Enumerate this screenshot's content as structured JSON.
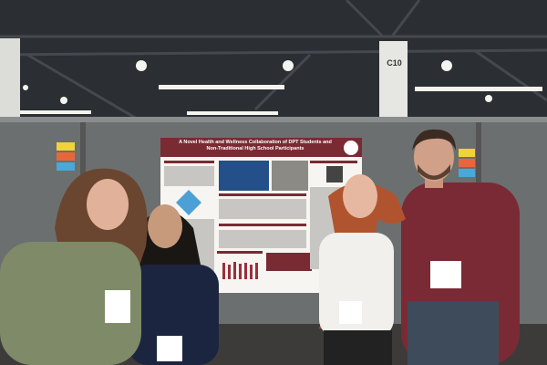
{
  "signs": {
    "booth": "C10"
  },
  "poster": {
    "title": "A Novel Health and Wellness Collaboration of DPT Students and Non-Traditional High School Participants"
  }
}
